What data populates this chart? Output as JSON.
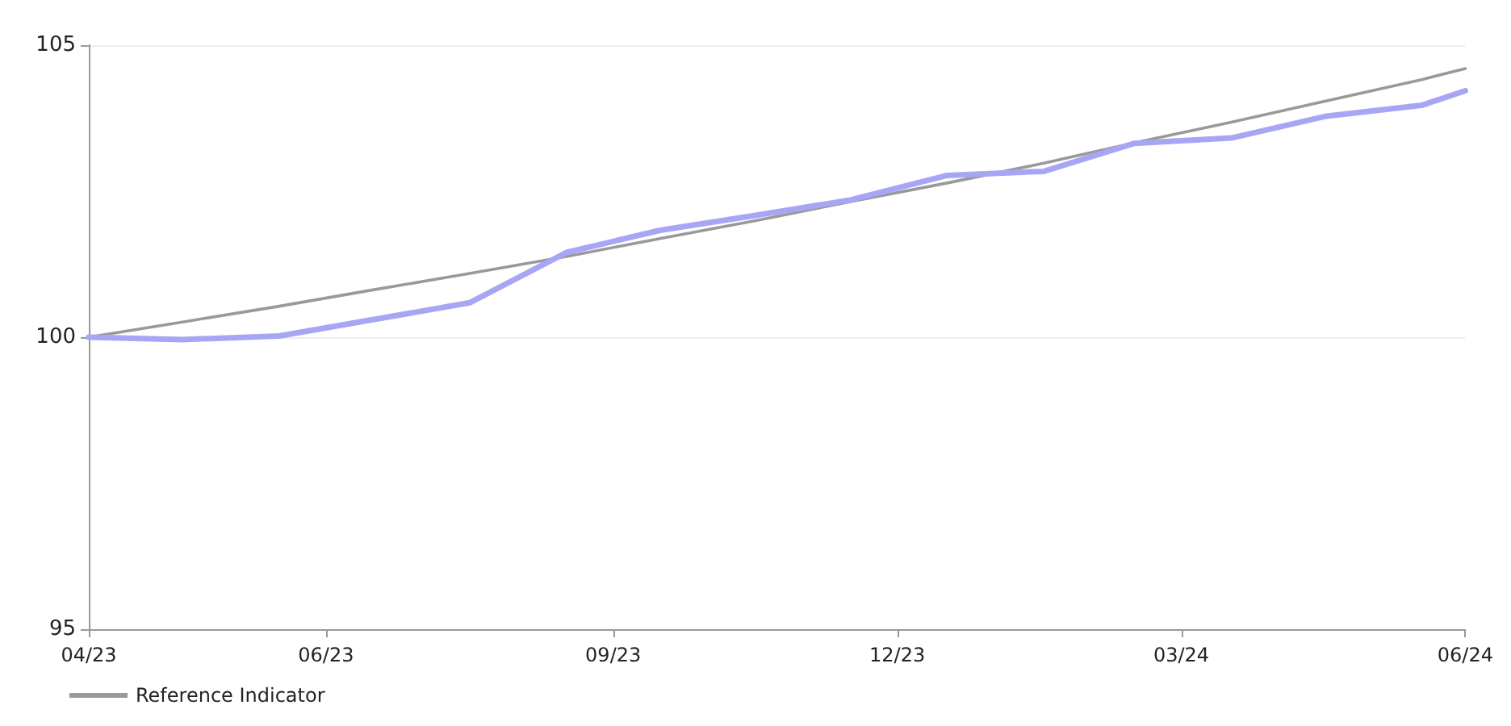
{
  "chart_data": {
    "type": "line",
    "x": [
      "2023-04-14",
      "2023-05-14",
      "2023-06-14",
      "2023-07-14",
      "2023-08-14",
      "2023-09-14",
      "2023-10-14",
      "2023-11-14",
      "2023-12-14",
      "2024-01-14",
      "2024-02-14",
      "2024-03-14",
      "2024-04-14",
      "2024-05-14",
      "2024-06-14",
      "2024-06-28"
    ],
    "series": [
      {
        "color": "#a6a6f5",
        "values": [
          100.0,
          99.96,
          100.02,
          100.3,
          100.59,
          101.45,
          101.83,
          102.09,
          102.35,
          102.77,
          102.84,
          103.32,
          103.41,
          103.78,
          103.97,
          104.22
        ]
      },
      {
        "name": "Reference Indicator",
        "color": "#999999",
        "values": [
          100.0,
          100.26,
          100.53,
          100.81,
          101.09,
          101.38,
          101.69,
          102.0,
          102.32,
          102.64,
          102.98,
          103.33,
          103.68,
          104.04,
          104.41,
          104.6
        ]
      }
    ],
    "xlim": [
      "2023-04-14",
      "2024-06-28"
    ],
    "xticks": [
      {
        "value": "2023-04-14",
        "label": "04/23"
      },
      {
        "value": "2023-06-29",
        "label": "06/23"
      },
      {
        "value": "2023-09-29",
        "label": "09/23"
      },
      {
        "value": "2023-12-29",
        "label": "12/23"
      },
      {
        "value": "2024-03-29",
        "label": "03/24"
      },
      {
        "value": "2024-06-28",
        "label": "06/24"
      }
    ],
    "ylim": [
      95,
      105
    ],
    "yticks": [
      95,
      100,
      105
    ],
    "grid": "y",
    "legend": "bottom left",
    "marker": "none",
    "line_style": "solid"
  }
}
